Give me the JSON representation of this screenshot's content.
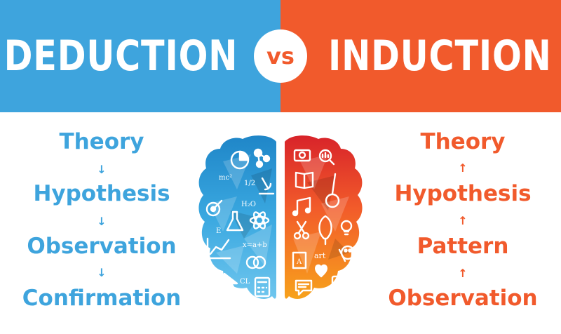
{
  "left": {
    "title": "DEDUCTION",
    "color": "#3ea4dd",
    "steps": [
      "Theory",
      "Hypothesis",
      "Observation",
      "Confirmation"
    ],
    "arrow": "↓"
  },
  "vs": "vs",
  "right": {
    "title": "INDUCTION",
    "color": "#f15a2c",
    "steps": [
      "Theory",
      "Hypothesis",
      "Pattern",
      "Observation"
    ],
    "arrow": "↑"
  },
  "brain": {
    "left_icons": [
      "pie-chart-icon",
      "molecule-icon",
      "formula-mc2",
      "fraction-half",
      "microscope-icon",
      "formula-h2o",
      "target-icon",
      "flask-icon",
      "atom-icon",
      "letter-e",
      "line-graph-icon",
      "formula-x-a-b",
      "venn-icon",
      "cursor-icon",
      "formula-cl",
      "calculator-icon"
    ],
    "right_icons": [
      "camera-icon",
      "search-chart-icon",
      "book-icon",
      "guitar-icon",
      "music-notes-icon",
      "scissors-icon",
      "leaf-icon",
      "lightbulb-icon",
      "palette-icon",
      "brush-icon",
      "painting-icon",
      "heart-icon",
      "speech-bubble-icon",
      "tablet-icon"
    ],
    "labels": {
      "mc2": "mc²",
      "half": "1/2",
      "h2o": "H₂O",
      "e": "E",
      "xab": "x=a+b",
      "cl": "CL",
      "art": "art",
      "a": "A"
    }
  }
}
